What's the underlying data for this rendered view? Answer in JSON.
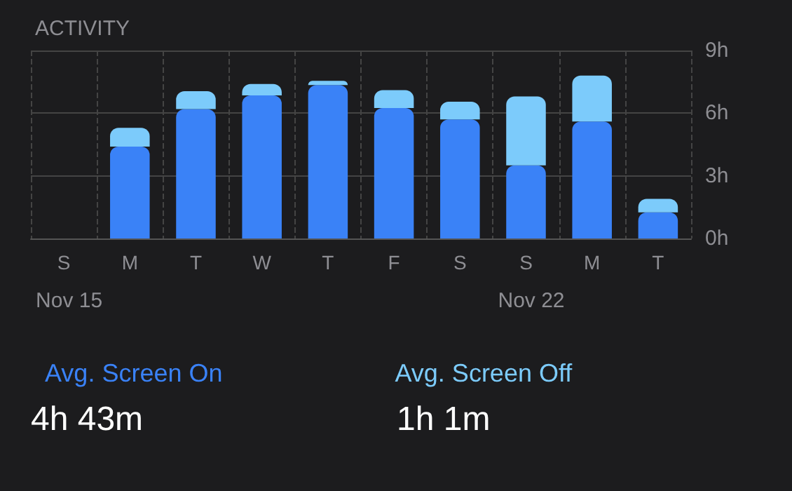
{
  "chart_data": {
    "type": "bar",
    "title": "ACTIVITY",
    "stacked": true,
    "categories": [
      "S",
      "M",
      "T",
      "W",
      "T",
      "F",
      "S",
      "S",
      "M",
      "T"
    ],
    "series": [
      {
        "name": "Avg. Screen On",
        "color": "#3a82f7",
        "values": [
          null,
          4.4,
          6.2,
          6.85,
          7.35,
          6.25,
          5.7,
          3.5,
          5.6,
          1.25
        ]
      },
      {
        "name": "Avg. Screen Off",
        "color": "#7ccbfb",
        "values": [
          null,
          0.9,
          0.85,
          0.55,
          0.2,
          0.85,
          0.85,
          3.3,
          2.2,
          0.65
        ]
      }
    ],
    "ylim": [
      0,
      9
    ],
    "yticks": [
      {
        "value": 0,
        "label": "0h"
      },
      {
        "value": 3,
        "label": "3h"
      },
      {
        "value": 6,
        "label": "6h"
      },
      {
        "value": 9,
        "label": "9h"
      }
    ],
    "grid": true,
    "legend": "bottom",
    "annotations": [
      "Nov 15",
      "Nov 22",
      "4h 43m",
      "1h 1m"
    ]
  }
}
